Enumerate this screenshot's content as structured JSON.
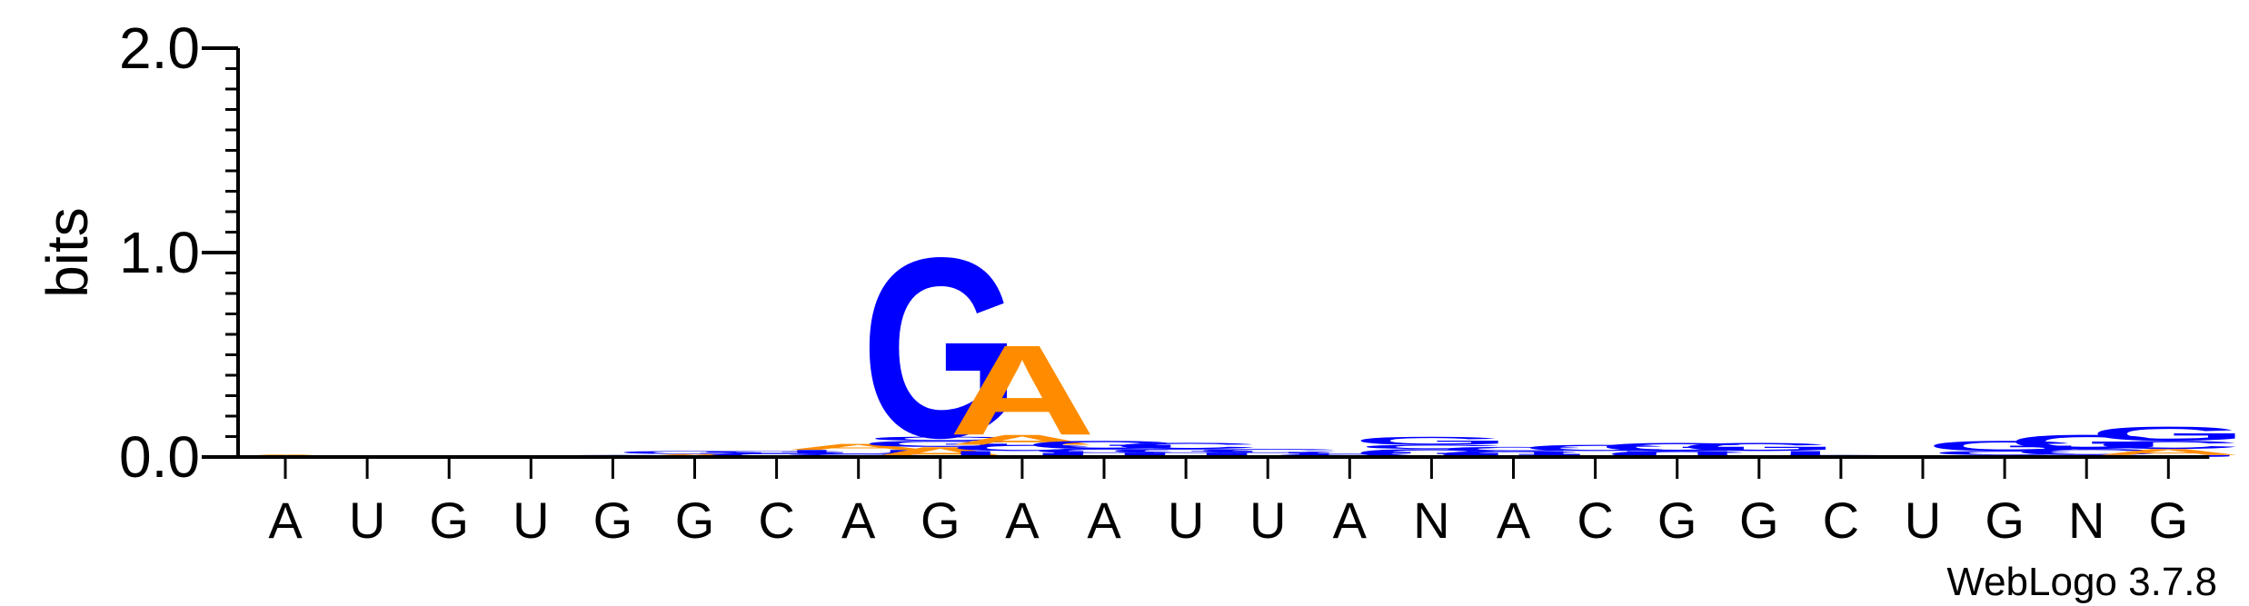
{
  "chart_data": {
    "type": "sequence-logo",
    "ylabel": "bits",
    "ylim": [
      0,
      2.0
    ],
    "yticks": [
      {
        "value": 0.0,
        "label": "0.0"
      },
      {
        "value": 1.0,
        "label": "1.0"
      },
      {
        "value": 2.0,
        "label": "2.0"
      }
    ],
    "yminor_step": 0.1,
    "positions": [
      "A",
      "U",
      "G",
      "U",
      "G",
      "G",
      "C",
      "A",
      "G",
      "A",
      "A",
      "U",
      "U",
      "A",
      "N",
      "A",
      "C",
      "G",
      "G",
      "C",
      "U",
      "G",
      "N",
      "G"
    ],
    "colors": {
      "A": "#ff8c00",
      "C": "#0000ff",
      "G": "#0000ff",
      "U": "#0000ff"
    },
    "stacks": [
      [
        {
          "letter": "A",
          "height": 0.012
        }
      ],
      [],
      [],
      [],
      [
        {
          "letter": "C",
          "height": 0.01
        }
      ],
      [
        {
          "letter": "A",
          "height": 0.015
        },
        {
          "letter": "G",
          "height": 0.015
        }
      ],
      [
        {
          "letter": "C",
          "height": 0.018
        },
        {
          "letter": "G",
          "height": 0.012
        }
      ],
      [
        {
          "letter": "G",
          "height": 0.015
        },
        {
          "letter": "U",
          "height": 0.02
        },
        {
          "letter": "A",
          "height": 0.03
        }
      ],
      [
        {
          "letter": "A",
          "height": 0.05
        },
        {
          "letter": "G",
          "height": 0.03
        },
        {
          "letter": "C",
          "height": 0.02
        },
        {
          "letter": "G",
          "height": 0.9
        }
      ],
      [
        {
          "letter": "U",
          "height": 0.03
        },
        {
          "letter": "C",
          "height": 0.03
        },
        {
          "letter": "A",
          "height": 0.05
        },
        {
          "letter": "A",
          "height": 0.45
        }
      ],
      [
        {
          "letter": "U",
          "height": 0.02
        },
        {
          "letter": "C",
          "height": 0.02
        },
        {
          "letter": "G",
          "height": 0.04
        }
      ],
      [
        {
          "letter": "U",
          "height": 0.02
        },
        {
          "letter": "G",
          "height": 0.02
        },
        {
          "letter": "C",
          "height": 0.03
        }
      ],
      [
        {
          "letter": "U",
          "height": 0.02
        },
        {
          "letter": "C",
          "height": 0.02
        }
      ],
      [
        {
          "letter": "G",
          "height": 0.015
        },
        {
          "letter": "U",
          "height": 0.01
        }
      ],
      [
        {
          "letter": "G",
          "height": 0.04
        },
        {
          "letter": "C",
          "height": 0.02
        },
        {
          "letter": "G",
          "height": 0.04
        }
      ],
      [
        {
          "letter": "G",
          "height": 0.03
        },
        {
          "letter": "C",
          "height": 0.02
        }
      ],
      [
        {
          "letter": "U",
          "height": 0.03
        },
        {
          "letter": "C",
          "height": 0.03
        }
      ],
      [
        {
          "letter": "C",
          "height": 0.03
        },
        {
          "letter": "G",
          "height": 0.04
        }
      ],
      [
        {
          "letter": "U",
          "height": 0.03
        },
        {
          "letter": "G",
          "height": 0.04
        }
      ],
      [
        {
          "letter": "G",
          "height": 0.01
        }
      ],
      [],
      [
        {
          "letter": "A",
          "height": 0.01
        },
        {
          "letter": "C",
          "height": 0.02
        },
        {
          "letter": "G",
          "height": 0.05
        }
      ],
      [
        {
          "letter": "A",
          "height": 0.01
        },
        {
          "letter": "C",
          "height": 0.03
        },
        {
          "letter": "G",
          "height": 0.07
        }
      ],
      [
        {
          "letter": "U",
          "height": 0.01
        },
        {
          "letter": "A",
          "height": 0.03
        },
        {
          "letter": "C",
          "height": 0.04
        },
        {
          "letter": "G",
          "height": 0.07
        }
      ]
    ]
  },
  "footer": {
    "version_text": "WebLogo 3.7.8"
  }
}
